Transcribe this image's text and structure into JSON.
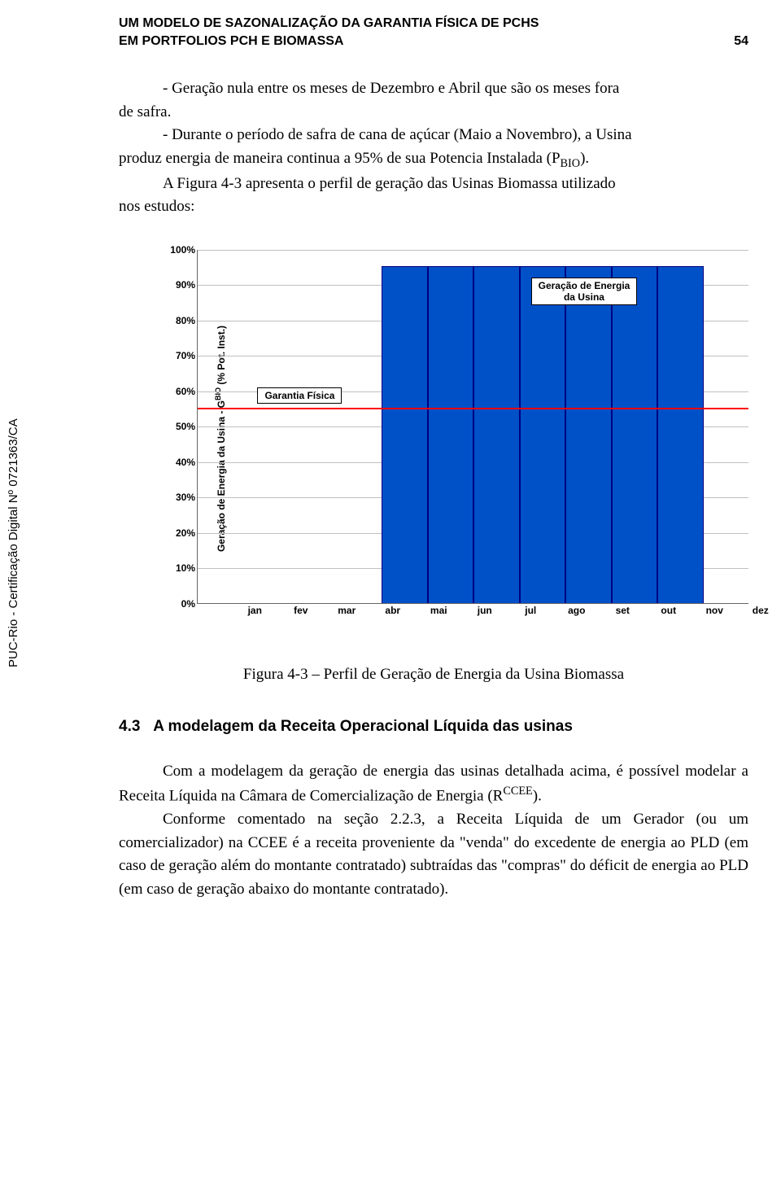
{
  "vertical_side_label": "PUC-Rio - Certificação Digital Nº 0721363/CA",
  "header": {
    "line1": "UM MODELO DE SAZONALIZAÇÃO DA GARANTIA FÍSICA DE PCHS",
    "line2_left": "EM PORTFOLIOS PCH E BIOMASSA",
    "line2_right": "54"
  },
  "body": {
    "p1a": "- Geração nula entre os meses de Dezembro e Abril que são os meses fora",
    "p1b": "de safra.",
    "p2a": "- Durante o período de safra de cana de açúcar (Maio a Novembro), a Usina",
    "p2b_prefix": "produz energia de maneira continua a 95% de sua Potencia Instalada (P",
    "p2b_sub": "BIO",
    "p2b_suffix": ").",
    "p3a": "A Figura 4-3 apresenta o perfil de geração das Usinas Biomassa utilizado",
    "p3b": "nos estudos:",
    "caption": "Figura 4-3 – Perfil de Geração de Energia da Usina Biomassa",
    "section_num": "4.3",
    "section_title": "A modelagem da Receita Operacional Líquida das usinas",
    "p4": "Com a modelagem da geração de energia das usinas detalhada acima, é possível modelar a Receita Líquida na Câmara de Comercialização de Energia (R",
    "p4_sup": "CCEE",
    "p4_suffix": ").",
    "p5": "Conforme comentado na seção 2.2.3, a Receita Líquida de um Gerador (ou um comercializador) na CCEE é a receita proveniente da \"venda\" do excedente de energia ao PLD (em caso de geração além do montante contratado) subtraídas das \"compras\" do déficit de energia ao PLD (em caso de geração abaixo do montante contratado)."
  },
  "chart": {
    "type": "bar",
    "y_label_a": "Geração de Energia da Usina - G",
    "y_label_sup": "BIO",
    "y_label_b": " (% Pot. Inst.)",
    "categories": [
      "jan",
      "fev",
      "mar",
      "abr",
      "mai",
      "jun",
      "jul",
      "ago",
      "set",
      "out",
      "nov",
      "dez"
    ],
    "values": [
      0,
      0,
      0,
      0,
      95,
      95,
      95,
      95,
      95,
      95,
      95,
      0
    ],
    "bar_color": "#0050c8",
    "bar_border": "#000080",
    "gf_value": 55.4,
    "gf_color": "#ff0000",
    "ymin": 0,
    "ymax": 100,
    "ytick_step": 10,
    "yticks": [
      "0%",
      "10%",
      "20%",
      "30%",
      "40%",
      "50%",
      "60%",
      "70%",
      "80%",
      "90%",
      "100%"
    ],
    "grid_color": "#c0c0c0",
    "annot_gf": "Garantia Física",
    "annot_gen_l1": "Geração de Energia",
    "annot_gen_l2": "da Usina"
  }
}
